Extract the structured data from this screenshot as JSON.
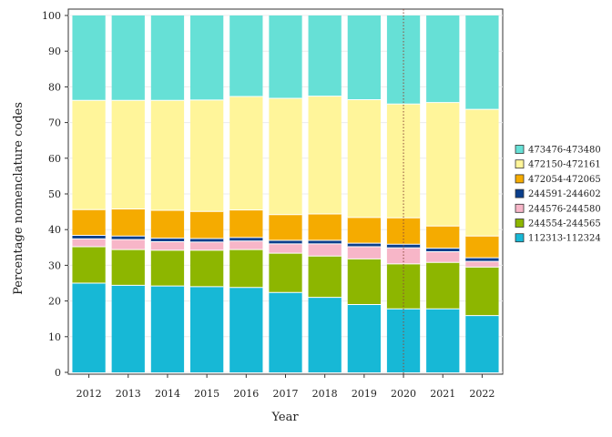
{
  "chart_data": {
    "type": "bar",
    "stacked": true,
    "xlabel": "Year",
    "ylabel": "Percentage nomenclature codes",
    "ylim": [
      0,
      100
    ],
    "yticks": [
      0,
      10,
      20,
      30,
      40,
      50,
      60,
      70,
      80,
      90,
      100
    ],
    "grid": true,
    "legend_position": "right",
    "reference_line": {
      "x": "2020",
      "color": "#8b4a3a",
      "style": "dotted"
    },
    "categories": [
      "2012",
      "2013",
      "2014",
      "2015",
      "2016",
      "2017",
      "2018",
      "2019",
      "2020",
      "2021",
      "2022"
    ],
    "series": [
      {
        "name": "112313-112324",
        "color": "#17b8d6",
        "values": [
          25.0,
          24.4,
          24.2,
          24.0,
          23.8,
          22.4,
          21.0,
          19.0,
          17.8,
          17.8,
          15.9
        ]
      },
      {
        "name": "244554-244565",
        "color": "#8db600",
        "values": [
          10.2,
          10.0,
          10.0,
          10.2,
          10.6,
          11.0,
          11.6,
          12.8,
          12.6,
          13.0,
          13.6
        ]
      },
      {
        "name": "244576-244580",
        "color": "#f7b6c8",
        "values": [
          2.2,
          2.8,
          2.4,
          2.3,
          2.4,
          2.6,
          3.4,
          3.4,
          4.5,
          3.0,
          1.6
        ]
      },
      {
        "name": "244591-244602",
        "color": "#0b3f8c",
        "values": [
          1.0,
          1.0,
          1.0,
          1.0,
          1.0,
          1.0,
          1.0,
          1.0,
          1.0,
          1.0,
          1.0
        ]
      },
      {
        "name": "472054-472065",
        "color": "#f5ab00",
        "values": [
          7.2,
          7.6,
          7.8,
          7.6,
          7.7,
          7.2,
          7.4,
          7.2,
          7.4,
          6.2,
          6.1
        ]
      },
      {
        "name": "472150-472161",
        "color": "#fff59a",
        "values": [
          30.6,
          30.4,
          30.8,
          31.2,
          31.8,
          32.6,
          33.0,
          33.0,
          31.9,
          34.6,
          35.5
        ]
      },
      {
        "name": "473476-473480",
        "color": "#66e0d6",
        "values": [
          23.8,
          23.8,
          23.8,
          23.7,
          22.7,
          23.2,
          22.6,
          23.6,
          24.8,
          24.4,
          26.3
        ]
      }
    ]
  }
}
